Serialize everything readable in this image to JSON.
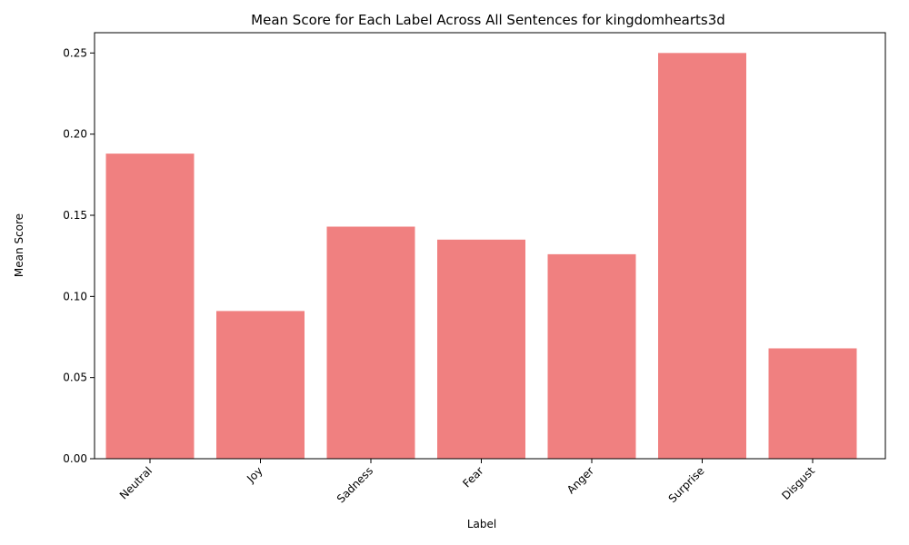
{
  "chart_data": {
    "type": "bar",
    "title": "Mean Score for Each Label Across All Sentences for kingdomhearts3d",
    "xlabel": "Label",
    "ylabel": "Mean Score",
    "categories": [
      "Neutral",
      "Joy",
      "Sadness",
      "Fear",
      "Anger",
      "Surprise",
      "Disgust"
    ],
    "values": [
      0.188,
      0.091,
      0.143,
      0.135,
      0.126,
      0.25,
      0.068
    ],
    "ylim": [
      0,
      0.2625
    ],
    "yticks": [
      "0.00",
      "0.05",
      "0.10",
      "0.15",
      "0.20",
      "0.25"
    ],
    "bar_color": "#f08080",
    "grid": false,
    "legend": "none"
  }
}
